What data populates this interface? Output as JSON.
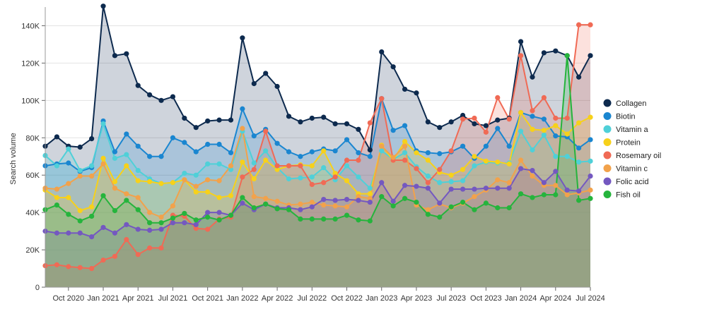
{
  "chart_data": {
    "type": "area",
    "ylabel": "Search volume",
    "xlabel": "",
    "ylim": [
      0,
      150000
    ],
    "y_ticks": [
      {
        "value": 0,
        "label": "0"
      },
      {
        "value": 20000,
        "label": "20K"
      },
      {
        "value": 40000,
        "label": "40K"
      },
      {
        "value": 60000,
        "label": "60K"
      },
      {
        "value": 80000,
        "label": "80K"
      },
      {
        "value": 100000,
        "label": "100K"
      },
      {
        "value": 120000,
        "label": "120K"
      },
      {
        "value": 140000,
        "label": "140K"
      }
    ],
    "x": [
      "2020-08",
      "2020-09",
      "2020-10",
      "2020-11",
      "2020-12",
      "2021-01",
      "2021-02",
      "2021-03",
      "2021-04",
      "2021-05",
      "2021-06",
      "2021-07",
      "2021-08",
      "2021-09",
      "2021-10",
      "2021-11",
      "2021-12",
      "2022-01",
      "2022-02",
      "2022-03",
      "2022-04",
      "2022-05",
      "2022-06",
      "2022-07",
      "2022-08",
      "2022-09",
      "2022-10",
      "2022-11",
      "2022-12",
      "2023-01",
      "2023-02",
      "2023-03",
      "2023-04",
      "2023-05",
      "2023-06",
      "2023-07",
      "2023-08",
      "2023-09",
      "2023-10",
      "2023-11",
      "2023-12",
      "2024-01",
      "2024-02",
      "2024-03",
      "2024-04",
      "2024-05",
      "2024-06",
      "2024-07"
    ],
    "x_ticks": [
      {
        "index": 2,
        "label": "Oct 2020"
      },
      {
        "index": 5,
        "label": "Jan 2021"
      },
      {
        "index": 8,
        "label": "Apr 2021"
      },
      {
        "index": 11,
        "label": "Jul 2021"
      },
      {
        "index": 14,
        "label": "Oct 2021"
      },
      {
        "index": 17,
        "label": "Jan 2022"
      },
      {
        "index": 20,
        "label": "Apr 2022"
      },
      {
        "index": 23,
        "label": "Jul 2022"
      },
      {
        "index": 26,
        "label": "Oct 2022"
      },
      {
        "index": 29,
        "label": "Jan 2023"
      },
      {
        "index": 32,
        "label": "Apr 2023"
      },
      {
        "index": 35,
        "label": "Jul 2023"
      },
      {
        "index": 38,
        "label": "Oct 2023"
      },
      {
        "index": 41,
        "label": "Jan 2024"
      },
      {
        "index": 44,
        "label": "Apr 2024"
      },
      {
        "index": 47,
        "label": "Jul 2024"
      }
    ],
    "grid": true,
    "legend_position": "right",
    "series": [
      {
        "name": "Collagen",
        "color": "#0d2a4e",
        "values": [
          75500,
          80500,
          75500,
          75000,
          79500,
          150500,
          124000,
          125000,
          108000,
          103000,
          100000,
          102000,
          90500,
          85500,
          89000,
          89500,
          89500,
          133500,
          109000,
          114500,
          107500,
          91500,
          88500,
          90500,
          91000,
          87500,
          87500,
          84500,
          73500,
          126000,
          118000,
          106000,
          104000,
          88500,
          85500,
          88500,
          92000,
          87500,
          86500,
          89500,
          90500,
          131500,
          112500,
          125500,
          126500,
          124000,
          112500,
          124000
        ]
      },
      {
        "name": "Biotin",
        "color": "#1a86d0",
        "values": [
          65000,
          66000,
          66500,
          62000,
          64000,
          89000,
          72500,
          82000,
          75500,
          70000,
          70000,
          80000,
          77500,
          72500,
          76500,
          76500,
          72000,
          95500,
          81000,
          84500,
          77000,
          72500,
          70000,
          72500,
          74000,
          73000,
          79000,
          72000,
          70000,
          101000,
          84000,
          86500,
          73000,
          72000,
          71500,
          72500,
          75500,
          69000,
          75500,
          85000,
          75500,
          93500,
          91500,
          90000,
          81000,
          80500,
          74500,
          79000
        ]
      },
      {
        "name": "Vitamin a",
        "color": "#4fd0d8",
        "values": [
          70500,
          65000,
          74000,
          62500,
          65000,
          87500,
          69000,
          71000,
          62500,
          58000,
          55500,
          56000,
          61000,
          60000,
          66000,
          66000,
          63000,
          83500,
          66500,
          73000,
          64000,
          58000,
          58500,
          59000,
          64000,
          57500,
          65000,
          59000,
          53000,
          73000,
          68500,
          72000,
          64500,
          59500,
          56000,
          56500,
          57000,
          65000,
          67000,
          66500,
          66500,
          83500,
          73500,
          81500,
          70000,
          70000,
          67000,
          67500
        ]
      },
      {
        "name": "Protein",
        "color": "#f7d11a",
        "values": [
          52000,
          48000,
          48000,
          41000,
          43000,
          69000,
          56500,
          65000,
          57000,
          56500,
          55500,
          56000,
          57500,
          51000,
          51000,
          48000,
          49000,
          67000,
          58000,
          68000,
          63000,
          65000,
          65500,
          65000,
          73000,
          61000,
          57000,
          50000,
          50000,
          76000,
          68000,
          78000,
          72000,
          68000,
          61500,
          60000,
          63000,
          70000,
          67500,
          67000,
          66000,
          93500,
          84500,
          84000,
          86500,
          82000,
          88000,
          91000
        ]
      },
      {
        "name": "Rosemary oil",
        "color": "#f06a55",
        "values": [
          11500,
          12000,
          11000,
          10500,
          10000,
          14500,
          16500,
          25500,
          17500,
          21000,
          21000,
          38500,
          38000,
          31500,
          31000,
          36500,
          37500,
          59000,
          63000,
          83500,
          65000,
          65000,
          65000,
          55000,
          56000,
          59000,
          68000,
          68000,
          88000,
          101000,
          68000,
          68000,
          63500,
          56000,
          63000,
          73000,
          90000,
          90500,
          83000,
          101500,
          90000,
          124000,
          94500,
          101500,
          90500,
          90500,
          140500,
          140500
        ]
      },
      {
        "name": "Vitamin c",
        "color": "#f2a24b",
        "values": [
          53000,
          52500,
          55500,
          59500,
          59500,
          66000,
          53000,
          50000,
          48000,
          40000,
          37500,
          43500,
          57500,
          54000,
          57500,
          57000,
          65000,
          85000,
          48500,
          47500,
          46000,
          44000,
          44500,
          45500,
          44000,
          43500,
          43000,
          48500,
          47500,
          75500,
          69500,
          75500,
          44000,
          41500,
          44500,
          42500,
          45000,
          48500,
          52000,
          57500,
          56000,
          68000,
          59500,
          54500,
          54500,
          49500,
          50500,
          52000
        ]
      },
      {
        "name": "Folic acid",
        "color": "#7458c0",
        "values": [
          30000,
          29000,
          29000,
          29000,
          27000,
          32000,
          29000,
          33500,
          31000,
          30500,
          31000,
          34500,
          34500,
          33500,
          40000,
          40000,
          38500,
          45000,
          41500,
          44500,
          42500,
          42500,
          41500,
          43000,
          47000,
          46500,
          47000,
          46500,
          45500,
          56000,
          46000,
          54500,
          54000,
          53000,
          45000,
          52500,
          52500,
          52500,
          53000,
          53000,
          53000,
          63500,
          62500,
          56000,
          62000,
          52000,
          51500,
          59500
        ]
      },
      {
        "name": "Fish oil",
        "color": "#25b43c",
        "values": [
          41500,
          44000,
          39000,
          35500,
          38000,
          49000,
          41000,
          46500,
          41500,
          34500,
          34500,
          37000,
          39500,
          36000,
          37500,
          36000,
          38500,
          48000,
          42500,
          44500,
          42000,
          41500,
          36500,
          36500,
          36500,
          36500,
          38500,
          36000,
          35500,
          48500,
          43500,
          47500,
          45500,
          39000,
          37500,
          43000,
          45500,
          41500,
          45000,
          42500,
          42500,
          50000,
          48000,
          49500,
          49500,
          124000,
          46500,
          47500
        ]
      }
    ]
  }
}
